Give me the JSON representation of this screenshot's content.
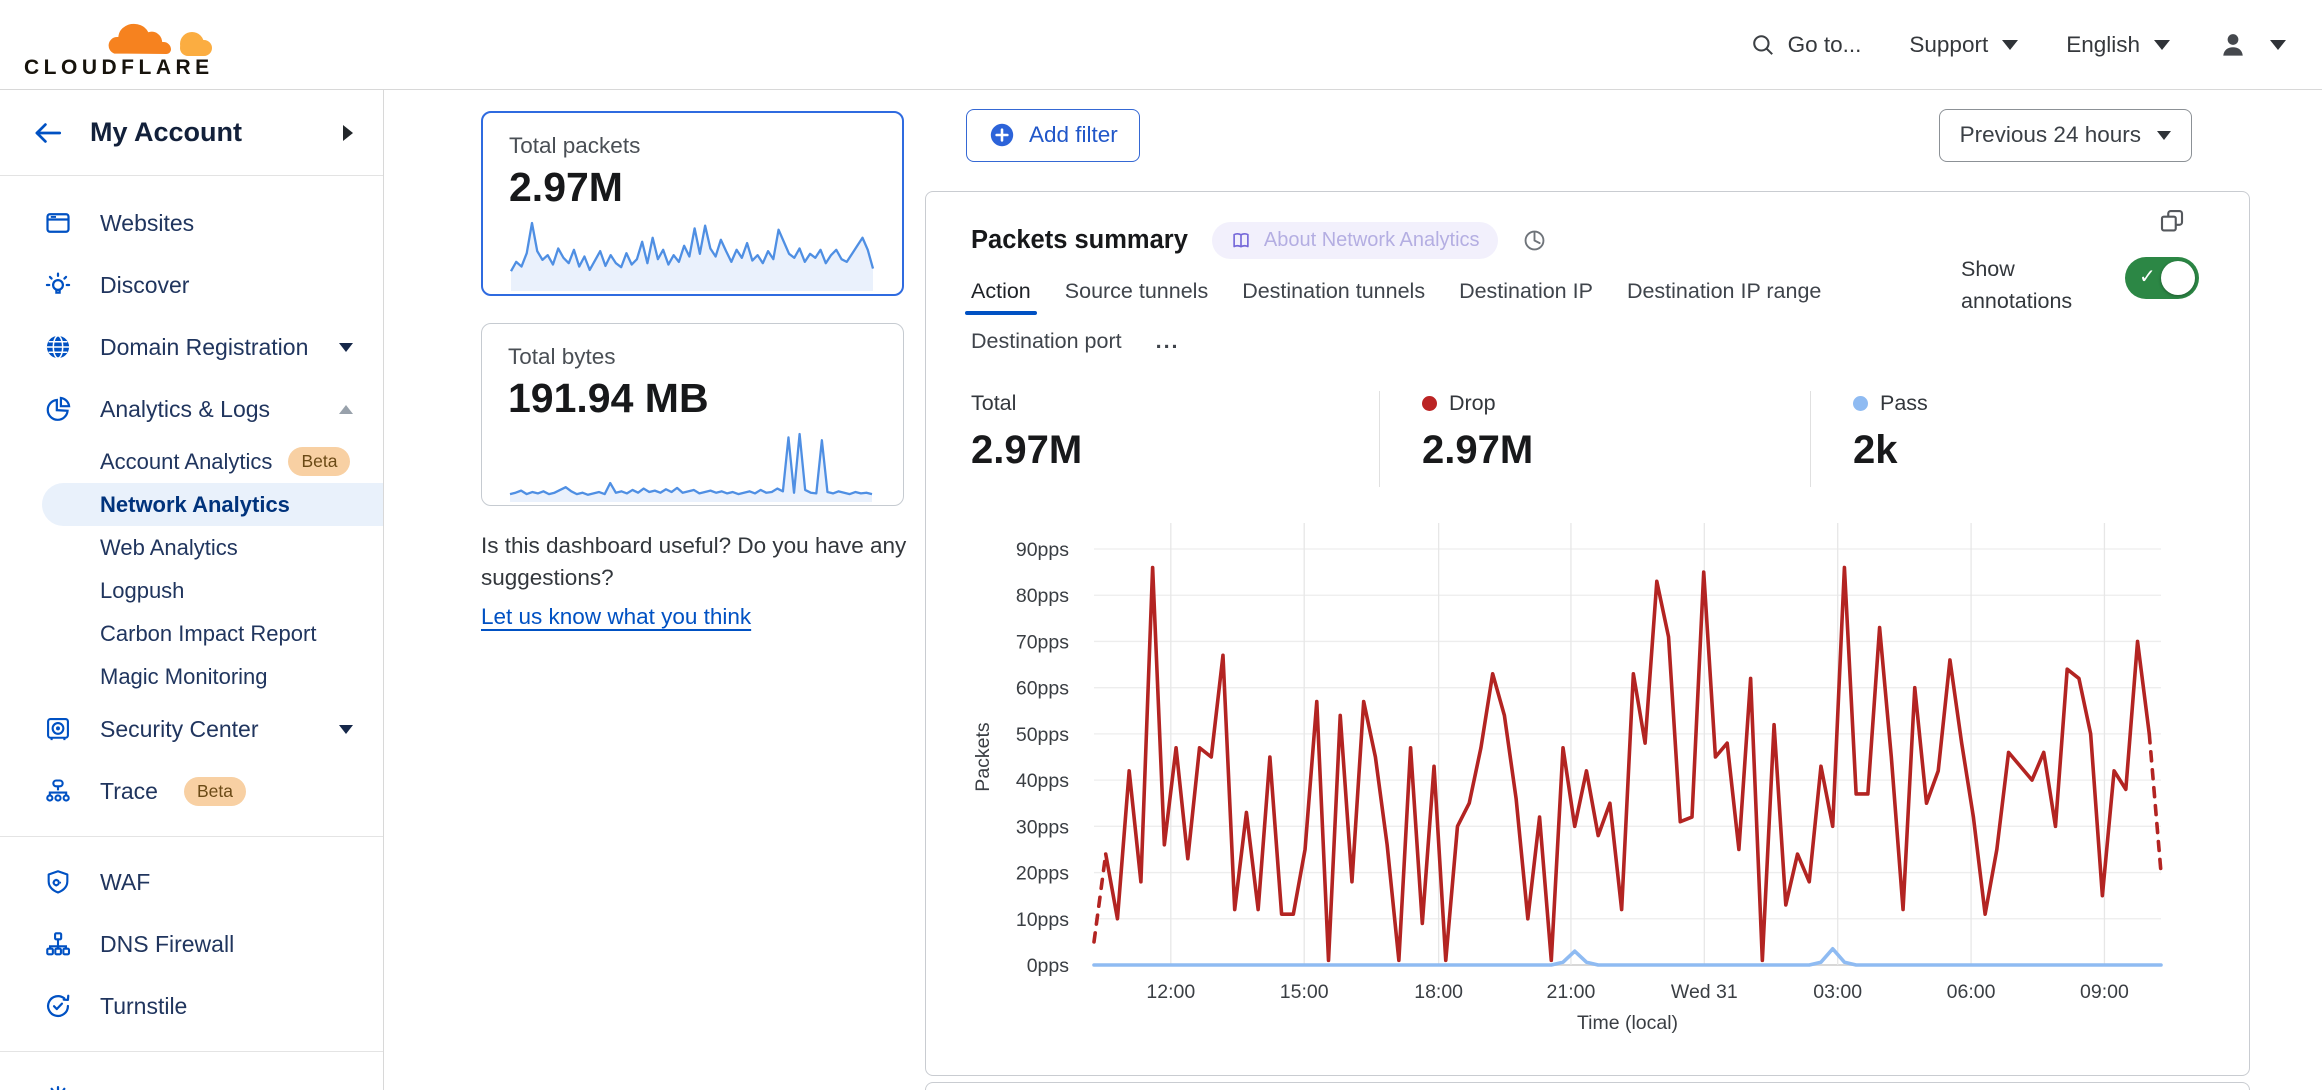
{
  "header": {
    "logo_text": "CLOUDFLARE",
    "goto_label": "Go to...",
    "support_label": "Support",
    "language_label": "English",
    "icons": [
      "search-icon",
      "user-icon",
      "caret-down-icon"
    ]
  },
  "sidebar": {
    "account_label": "My Account",
    "websites": "Websites",
    "discover": "Discover",
    "domain_registration": "Domain Registration",
    "analytics_logs": "Analytics & Logs",
    "account_analytics": "Account Analytics",
    "account_analytics_badge": "Beta",
    "network_analytics": "Network Analytics",
    "web_analytics": "Web Analytics",
    "logpush": "Logpush",
    "carbon_impact": "Carbon Impact Report",
    "magic_monitoring": "Magic Monitoring",
    "security_center": "Security Center",
    "trace": "Trace",
    "trace_badge": "Beta",
    "waf": "WAF",
    "dns_firewall": "DNS Firewall",
    "turnstile": "Turnstile"
  },
  "summary_cards": {
    "packets": {
      "label": "Total packets",
      "value": "2.97M",
      "spark": [
        28,
        42,
        35,
        55,
        100,
        58,
        45,
        52,
        38,
        62,
        48,
        40,
        60,
        35,
        50,
        30,
        44,
        58,
        36,
        52,
        40,
        34,
        55,
        38,
        46,
        72,
        40,
        78,
        46,
        60,
        38,
        52,
        42,
        66,
        50,
        92,
        54,
        96,
        62,
        50,
        75,
        58,
        42,
        60,
        48,
        70,
        44,
        52,
        40,
        58,
        46,
        90,
        72,
        54,
        48,
        62,
        42,
        54,
        48,
        60,
        40,
        52,
        60,
        46,
        42,
        54,
        66,
        78,
        60,
        32
      ]
    },
    "bytes": {
      "label": "Total bytes",
      "value": "191.94 MB",
      "spark": [
        10,
        12,
        15,
        10,
        13,
        11,
        14,
        10,
        12,
        16,
        20,
        14,
        10,
        12,
        9,
        11,
        13,
        10,
        26,
        12,
        14,
        11,
        16,
        12,
        18,
        13,
        15,
        12,
        17,
        13,
        19,
        12,
        14,
        16,
        11,
        13,
        15,
        12,
        14,
        11,
        13,
        10,
        12,
        14,
        11,
        16,
        12,
        13,
        18,
        14,
        92,
        12,
        97,
        16,
        12,
        11,
        88,
        13,
        11,
        14,
        12,
        10,
        13,
        11,
        12,
        10
      ]
    }
  },
  "feedback": {
    "question": "Is this dashboard useful? Do you have any suggestions?",
    "link": "Let us know what you think"
  },
  "toolbar": {
    "add_filter": "Add filter",
    "time_range": "Previous 24 hours"
  },
  "panel": {
    "title": "Packets summary",
    "about_badge": "About Network Analytics",
    "tabs": [
      "Action",
      "Source tunnels",
      "Destination tunnels",
      "Destination IP",
      "Destination IP range",
      "Destination port"
    ],
    "active_tab": "Action",
    "more_label": "...",
    "show_annotations": "Show annotations",
    "annotations_on": true,
    "stats": [
      {
        "label": "Total",
        "value": "2.97M",
        "dot_color": ""
      },
      {
        "label": "Drop",
        "value": "2.97M",
        "dot_color": "#bb2424"
      },
      {
        "label": "Pass",
        "value": "2k",
        "dot_color": "#8fbbf2"
      }
    ]
  },
  "chart_data": {
    "type": "line",
    "title": "Packets summary",
    "xlabel": "Time (local)",
    "ylabel": "Packets",
    "ylim": [
      0,
      90
    ],
    "y_tick_step": 10,
    "y_unit": "pps",
    "grid": true,
    "legend_position": "none",
    "x_ticks": [
      {
        "label": "12:00",
        "pos": 0.072
      },
      {
        "label": "15:00",
        "pos": 0.197
      },
      {
        "label": "18:00",
        "pos": 0.323
      },
      {
        "label": "21:00",
        "pos": 0.447
      },
      {
        "label": "Wed 31",
        "pos": 0.572
      },
      {
        "label": "03:00",
        "pos": 0.697
      },
      {
        "label": "06:00",
        "pos": 0.822
      },
      {
        "label": "09:00",
        "pos": 0.947
      }
    ],
    "series": [
      {
        "name": "Drop",
        "color": "#b32422",
        "dashed_head": 1,
        "dashed_tail": 1,
        "values": [
          5,
          24,
          10,
          42,
          18,
          86,
          26,
          47,
          23,
          47,
          45,
          67,
          12,
          33,
          12,
          45,
          11,
          11,
          25,
          57,
          1,
          54,
          18,
          57,
          45,
          26,
          1,
          47,
          9,
          43,
          1,
          30,
          35,
          47,
          63,
          54,
          36,
          10,
          32,
          1,
          47,
          30,
          42,
          28,
          35,
          12,
          63,
          48,
          83,
          71,
          31,
          32,
          85,
          45,
          48,
          25,
          62,
          1,
          52,
          13,
          24,
          18,
          43,
          30,
          86,
          37,
          37,
          73,
          45,
          12,
          60,
          35,
          42,
          66,
          48,
          32,
          11,
          25,
          46,
          43,
          40,
          46,
          30,
          64,
          62,
          50,
          15,
          42,
          38,
          70,
          50,
          20
        ]
      },
      {
        "name": "Pass",
        "color": "#8fbbf2",
        "dashed_head": 0,
        "dashed_tail": 0,
        "values": [
          0,
          0,
          0,
          0,
          0,
          0,
          0,
          0,
          0,
          0,
          0,
          0,
          0,
          0,
          0,
          0,
          0,
          0,
          0,
          0,
          0,
          0,
          0,
          0,
          0,
          0,
          0,
          0,
          0,
          0,
          0,
          0,
          0,
          0,
          0,
          0,
          0,
          0,
          0,
          0,
          0.6,
          3,
          0.6,
          0,
          0,
          0,
          0,
          0,
          0,
          0,
          0,
          0,
          0,
          0,
          0,
          0,
          0,
          0,
          0,
          0,
          0,
          0,
          0.6,
          3.5,
          0.6,
          0,
          0,
          0,
          0,
          0,
          0,
          0,
          0,
          0,
          0,
          0,
          0,
          0,
          0,
          0,
          0,
          0,
          0,
          0,
          0,
          0,
          0,
          0,
          0,
          0,
          0,
          0
        ]
      }
    ]
  },
  "colors": {
    "brand_orange": "#f6821f",
    "link_blue": "#0051c3",
    "selected_card_border": "#2f6be0",
    "drop_red": "#b32422",
    "pass_blue": "#8fbbf2",
    "toggle_green": "#2c8745",
    "beta_badge_bg": "#f8d0a3",
    "active_item_bg": "#e9f1fb"
  }
}
